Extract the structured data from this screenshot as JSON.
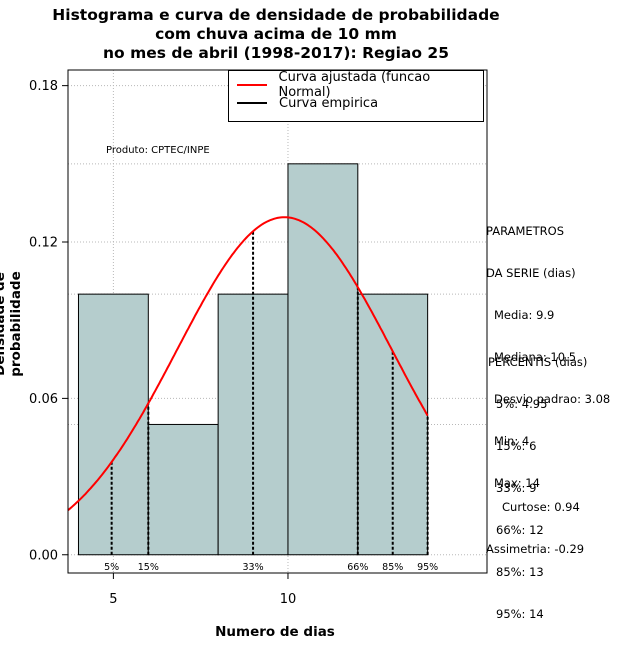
{
  "title": {
    "line1": "Histograma e curva de densidade de probabilidade",
    "line2": "com chuva acima de 10 mm",
    "line3": "no mes de abril (1998-2017): Regiao 25"
  },
  "product_note": "Produto: CPTEC/INPE",
  "legend": {
    "fitted_label": "Curva ajustada (funcao Normal)",
    "fitted_color": "#ff0000",
    "empirical_label": "Curva empirica",
    "empirical_color": "#000000"
  },
  "parameters": {
    "heading1": "PARAMETROS",
    "heading2": "DA SERIE (dias)",
    "items": [
      "Media: 9.9",
      "Mediana: 10.5",
      "Desvio padrao: 3.08",
      "Min: 4",
      "Max: 14"
    ]
  },
  "percentiles": {
    "heading": "PERCENTIS (dias)",
    "items": [
      "5%: 4.95",
      "15%: 6",
      "33%: 9",
      "66%: 12",
      "85%: 13",
      "95%: 14"
    ]
  },
  "shape": {
    "kurtosis": "Curtose: 0.94",
    "skewness": "Assimetria: -0.29"
  },
  "chart_data": {
    "type": "bar",
    "xlabel": "Numero de dias",
    "ylabel": "Densidade de probabilidade",
    "xlim": [
      3.7,
      15.7
    ],
    "ylim": [
      -0.007,
      0.186
    ],
    "x_ticks": [
      5,
      10
    ],
    "x_tick_labels": [
      "5",
      "10"
    ],
    "y_ticks": [
      0.0,
      0.06,
      0.12,
      0.18
    ],
    "y_tick_labels": [
      "0.00",
      "0.06",
      "0.12",
      "0.18"
    ],
    "grid": true,
    "bins": [
      {
        "start": 4,
        "end": 6,
        "density": 0.1
      },
      {
        "start": 6,
        "end": 8,
        "density": 0.05
      },
      {
        "start": 8,
        "end": 10,
        "density": 0.1
      },
      {
        "start": 10,
        "end": 12,
        "density": 0.15
      },
      {
        "start": 12,
        "end": 14,
        "density": 0.1
      }
    ],
    "bar_color": "#b5cdcd",
    "normal_fit": {
      "mean": 9.9,
      "sd": 3.08,
      "x_range": [
        3.7,
        14.0
      ]
    },
    "percentile_markers": [
      {
        "label": "5%",
        "x": 4.95
      },
      {
        "label": "15%",
        "x": 6.0
      },
      {
        "label": "33%",
        "x": 9.0
      },
      {
        "label": "66%",
        "x": 12.0
      },
      {
        "label": "85%",
        "x": 13.0
      },
      {
        "label": "95%",
        "x": 14.0
      }
    ]
  }
}
